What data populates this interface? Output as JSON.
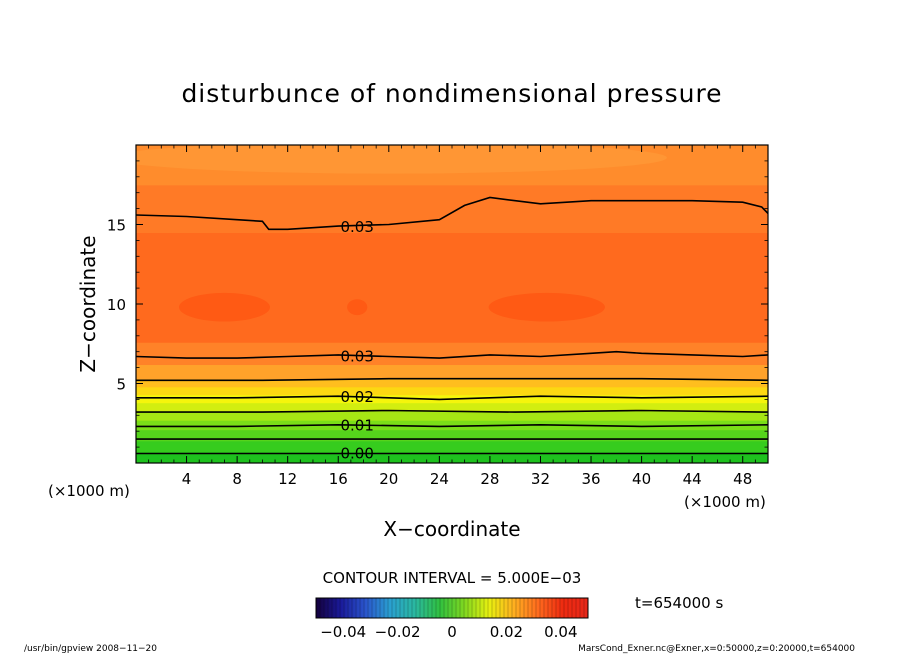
{
  "chart_data": {
    "type": "heatmap",
    "title": "disturbunce of nondimensional pressure",
    "xlabel": "X−coordinate",
    "ylabel": "Z−coordinate",
    "x_unit_left": "(×1000 m)",
    "x_unit_right": "(×1000 m)",
    "xlim": [
      0,
      50
    ],
    "ylim": [
      0,
      20
    ],
    "x_ticks": [
      4,
      8,
      12,
      16,
      20,
      24,
      28,
      32,
      36,
      40,
      44,
      48
    ],
    "x_tick_labels": [
      "4",
      "8",
      "12",
      "16",
      "20",
      "24",
      "28",
      "32",
      "36",
      "40",
      "44",
      "48"
    ],
    "y_ticks": [
      5,
      10,
      15
    ],
    "y_tick_labels": [
      "5",
      "10",
      "15"
    ],
    "levels": [
      {
        "z": 0.7,
        "color": "#1ec21e"
      },
      {
        "z": 1.4,
        "color": "#36cc1e"
      },
      {
        "z": 2.1,
        "color": "#55d41c"
      },
      {
        "z": 2.7,
        "color": "#7ade18"
      },
      {
        "z": 3.3,
        "color": "#a6e614"
      },
      {
        "z": 3.8,
        "color": "#d2ee10"
      },
      {
        "z": 4.3,
        "color": "#f5f50c"
      },
      {
        "z": 4.8,
        "color": "#fcd812"
      },
      {
        "z": 5.3,
        "color": "#ffbe1e"
      },
      {
        "z": 6.2,
        "color": "#ffa22a"
      },
      {
        "z": 7.6,
        "color": "#ff8228"
      },
      {
        "z": 14.5,
        "color": "#ff6a1e"
      },
      {
        "z": 17.5,
        "color": "#ff7a26"
      },
      {
        "z": 20.0,
        "color": "#ff8c2c"
      }
    ],
    "blobs": [
      {
        "x": 7,
        "z": 9.8,
        "rx": 3.6,
        "rz": 0.9,
        "color": "#ff5a14"
      },
      {
        "x": 17.5,
        "z": 9.8,
        "rx": 0.8,
        "rz": 0.5,
        "color": "#ff5a14"
      },
      {
        "x": 32.5,
        "z": 9.8,
        "rx": 4.6,
        "rz": 0.9,
        "color": "#ff5a14"
      },
      {
        "x": 20,
        "z": 19.2,
        "rx": 22,
        "rz": 1.0,
        "color": "#ff9634"
      }
    ],
    "contours": [
      {
        "value": "0.03",
        "x": [
          0,
          4,
          8,
          10,
          10.5,
          12,
          16,
          20,
          24,
          26,
          28,
          30,
          32,
          36,
          40,
          44,
          48,
          49.5,
          50
        ],
        "z": [
          15.6,
          15.5,
          15.3,
          15.2,
          14.7,
          14.7,
          14.9,
          15.0,
          15.3,
          16.2,
          16.7,
          16.5,
          16.3,
          16.5,
          16.5,
          16.5,
          16.4,
          16.1,
          15.7
        ]
      },
      {
        "value": "0.03",
        "x": [
          0,
          4,
          8,
          12,
          16,
          20,
          24,
          28,
          32,
          36,
          38,
          40,
          44,
          48,
          50
        ],
        "z": [
          6.7,
          6.6,
          6.6,
          6.7,
          6.8,
          6.7,
          6.6,
          6.8,
          6.7,
          6.9,
          7.0,
          6.9,
          6.8,
          6.7,
          6.8
        ]
      },
      {
        "value": "",
        "x": [
          0,
          10,
          20,
          30,
          40,
          50
        ],
        "z": [
          5.2,
          5.2,
          5.3,
          5.3,
          5.3,
          5.2
        ]
      },
      {
        "value": "0.02",
        "x": [
          0,
          8,
          16,
          24,
          32,
          40,
          50
        ],
        "z": [
          4.1,
          4.1,
          4.2,
          4.0,
          4.2,
          4.1,
          4.2
        ]
      },
      {
        "value": "",
        "x": [
          0,
          10,
          20,
          30,
          40,
          50
        ],
        "z": [
          3.2,
          3.2,
          3.3,
          3.2,
          3.3,
          3.2
        ]
      },
      {
        "value": "0.01",
        "x": [
          0,
          8,
          16,
          24,
          32,
          40,
          50
        ],
        "z": [
          2.3,
          2.3,
          2.4,
          2.3,
          2.4,
          2.3,
          2.4
        ]
      },
      {
        "value": "",
        "x": [
          0,
          10,
          20,
          30,
          40,
          50
        ],
        "z": [
          1.5,
          1.5,
          1.5,
          1.5,
          1.5,
          1.5
        ]
      },
      {
        "value": "0.00",
        "x": [
          0,
          8,
          16,
          24,
          32,
          40,
          50
        ],
        "z": [
          0.6,
          0.6,
          0.6,
          0.6,
          0.6,
          0.6,
          0.6
        ]
      }
    ],
    "contour_labels": [
      {
        "text": "0.03",
        "x": 17.5,
        "z": 14.85
      },
      {
        "text": "0.03",
        "x": 17.5,
        "z": 6.7
      },
      {
        "text": "0.02",
        "x": 17.5,
        "z": 4.15
      },
      {
        "text": "0.01",
        "x": 17.5,
        "z": 2.35
      },
      {
        "text": "0.00",
        "x": 17.5,
        "z": 0.6
      }
    ],
    "contour_interval": "CONTOUR INTERVAL = 5.000E−03",
    "time_label": "t=654000 s",
    "colorbar": {
      "range": [
        -0.05,
        0.05
      ],
      "ticks": [
        -0.04,
        -0.02,
        0,
        0.02,
        0.04
      ],
      "tick_labels": [
        "−0.04",
        "−0.02",
        "0",
        "0.02",
        "0.04"
      ],
      "stops": [
        "#14003c",
        "#1a1a9a",
        "#2a55cc",
        "#2aa0d0",
        "#2ab8a0",
        "#30c040",
        "#80d820",
        "#e8f010",
        "#ffb020",
        "#ff6a1e",
        "#ee2a10",
        "#e6281a"
      ]
    },
    "footer_left": "/usr/bin/gpview   2008−11−20",
    "footer_right": "MarsCond_Exner.nc@Exner,x=0:50000,z=0:20000,t=654000"
  }
}
